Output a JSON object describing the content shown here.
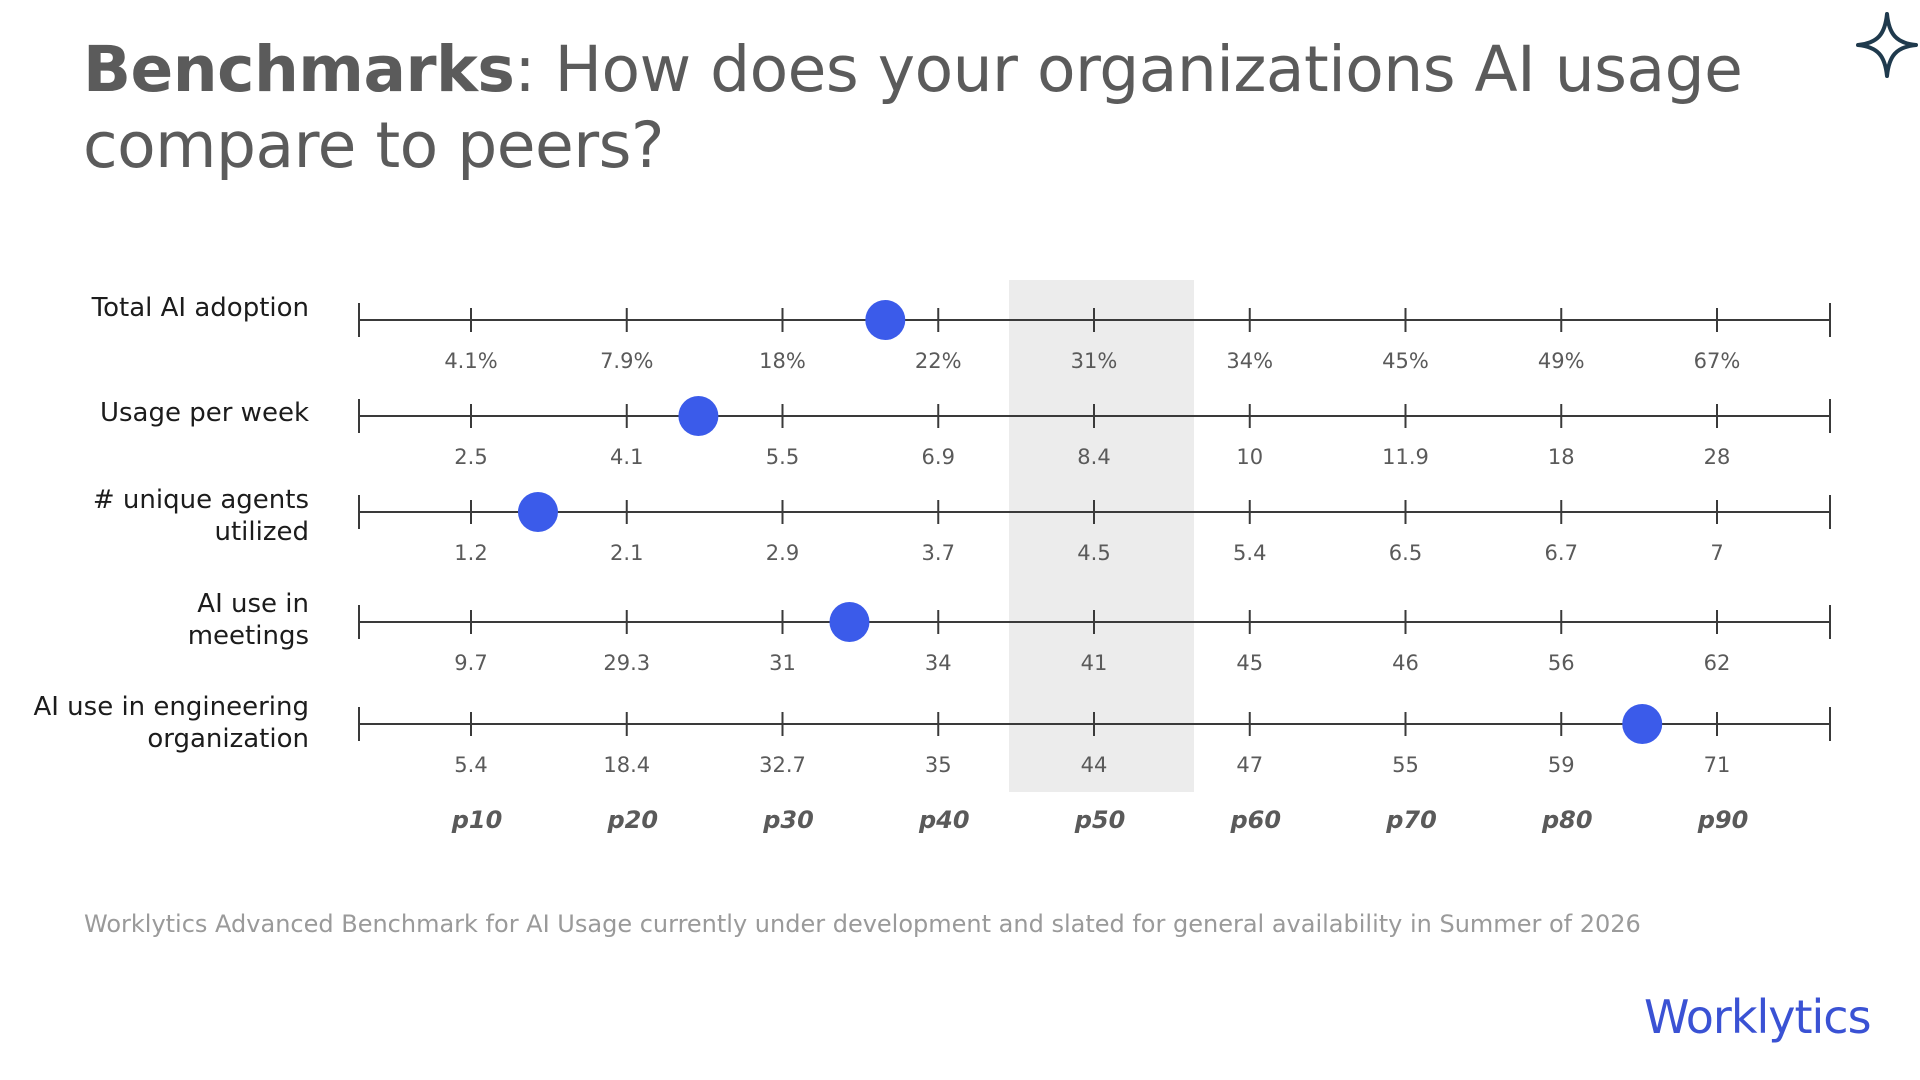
{
  "slide": {
    "title_lead": "Benchmarks",
    "title_rest": ": How does your organizations AI usage compare to peers?",
    "footnote": "Worklytics Advanced Benchmark for AI Usage currently under development and slated for general availability in Summer of 2026",
    "brand": "Worklytics",
    "icons": {
      "corner": "sparkle-icon"
    }
  },
  "colors": {
    "marker": "#3b5bea",
    "axis": "#3a3a3a",
    "median_band": "#ececec",
    "brand": "#3a52d4"
  },
  "chart_data": {
    "type": "scatter",
    "percentile_labels": [
      "p10",
      "p20",
      "p30",
      "p40",
      "p50",
      "p60",
      "p70",
      "p80",
      "p90"
    ],
    "highlighted_percentile": "p50",
    "rows": [
      {
        "label": "Total AI adoption",
        "tick_labels": [
          "4.1%",
          "7.9%",
          "18%",
          "22%",
          "31%",
          "34%",
          "45%",
          "49%",
          "67%"
        ],
        "marker_percentile": 36.6
      },
      {
        "label": "Usage per week",
        "tick_labels": [
          "2.5",
          "4.1",
          "5.5",
          "6.9",
          "8.4",
          "10",
          "11.9",
          "18",
          "28"
        ],
        "marker_percentile": 24.6
      },
      {
        "label": "# unique agents\nutilized",
        "tick_labels": [
          "1.2",
          "2.1",
          "2.9",
          "3.7",
          "4.5",
          "5.4",
          "6.5",
          "6.7",
          "7"
        ],
        "marker_percentile": 14.3
      },
      {
        "label": "AI use in\nmeetings",
        "tick_labels": [
          "9.7",
          "29.3",
          "31",
          "34",
          "41",
          "45",
          "46",
          "56",
          "62"
        ],
        "marker_percentile": 34.3
      },
      {
        "label": "AI use in engineering\norganization",
        "tick_labels": [
          "5.4",
          "18.4",
          "32.7",
          "35",
          "44",
          "47",
          "55",
          "59",
          "71"
        ],
        "marker_percentile": 85.2
      }
    ]
  }
}
